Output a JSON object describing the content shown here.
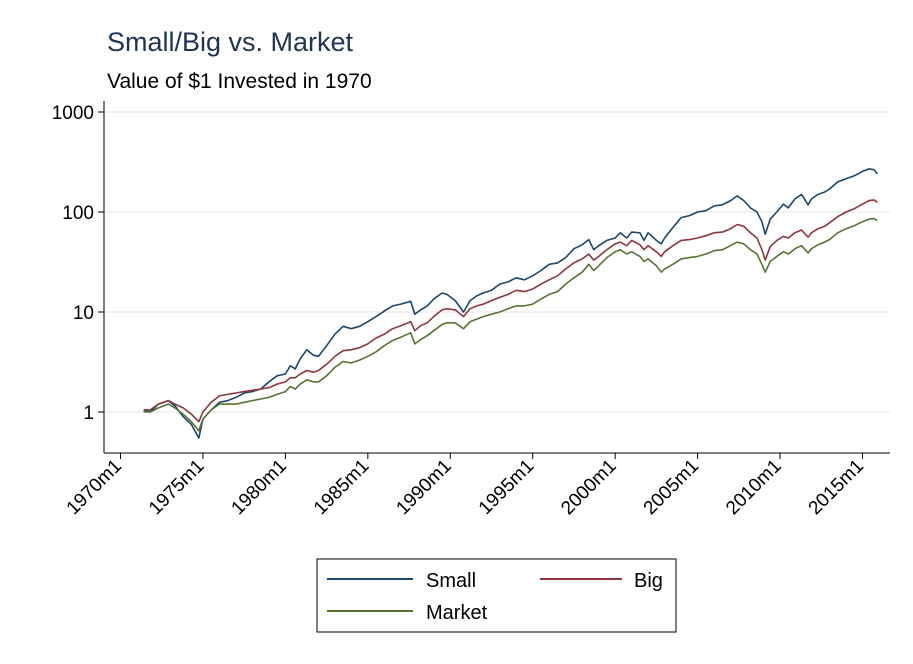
{
  "chart_data": {
    "type": "line",
    "title": "Small/Big vs. Market",
    "subtitle": "Value of $1 Invested in 1970",
    "xlabel": "",
    "ylabel": "",
    "y_scale": "log",
    "ylim": [
      0.4,
      1000
    ],
    "y_ticks": [
      1,
      10,
      100,
      1000
    ],
    "y_tick_labels": [
      "1",
      "10",
      "100",
      "1000"
    ],
    "xlim": [
      1970.0,
      2016.5
    ],
    "x_ticks": [
      1970,
      1975,
      1980,
      1985,
      1990,
      1995,
      2000,
      2005,
      2010,
      2015
    ],
    "x_tick_labels": [
      "1970m1",
      "1975m1",
      "1980m1",
      "1985m1",
      "1990m1",
      "1995m1",
      "2000m1",
      "2005m1",
      "2010m1",
      "2015m1"
    ],
    "grid": true,
    "legend_position": "bottom",
    "series": [
      {
        "name": "Small",
        "color": "#1a476f",
        "x": [
          1971.4,
          1971.8,
          1972.3,
          1972.9,
          1973.3,
          1973.8,
          1974.3,
          1974.75,
          1975.0,
          1975.5,
          1976.0,
          1976.5,
          1977.0,
          1977.5,
          1978.0,
          1978.5,
          1979.0,
          1979.5,
          1980.0,
          1980.3,
          1980.6,
          1980.9,
          1981.3,
          1981.7,
          1982.0,
          1982.5,
          1983.0,
          1983.5,
          1984.0,
          1984.5,
          1985.0,
          1985.5,
          1986.0,
          1986.5,
          1987.0,
          1987.6,
          1987.85,
          1988.2,
          1988.6,
          1989.0,
          1989.5,
          1989.8,
          1990.3,
          1990.8,
          1991.2,
          1991.6,
          1992.0,
          1992.5,
          1993.0,
          1993.5,
          1994.0,
          1994.5,
          1995.0,
          1995.5,
          1996.0,
          1996.5,
          1997.0,
          1997.5,
          1998.0,
          1998.4,
          1998.7,
          1999.0,
          1999.5,
          2000.0,
          2000.3,
          2000.7,
          2001.0,
          2001.5,
          2001.75,
          2002.0,
          2002.5,
          2002.8,
          2003.0,
          2003.5,
          2004.0,
          2004.5,
          2005.0,
          2005.5,
          2006.0,
          2006.5,
          2007.0,
          2007.4,
          2007.8,
          2008.2,
          2008.6,
          2008.9,
          2009.1,
          2009.4,
          2009.8,
          2010.2,
          2010.5,
          2010.9,
          2011.3,
          2011.7,
          2011.9,
          2012.3,
          2012.7,
          2013.0,
          2013.5,
          2014.0,
          2014.5,
          2015.0,
          2015.4,
          2015.7,
          2015.9
        ],
        "values": [
          1.05,
          1.0,
          1.2,
          1.3,
          1.15,
          0.9,
          0.75,
          0.55,
          0.85,
          1.05,
          1.25,
          1.3,
          1.4,
          1.55,
          1.6,
          1.7,
          2.0,
          2.3,
          2.4,
          2.9,
          2.7,
          3.4,
          4.2,
          3.7,
          3.6,
          4.6,
          6.0,
          7.2,
          6.8,
          7.2,
          8.0,
          9.0,
          10.2,
          11.5,
          12.0,
          12.8,
          9.5,
          10.5,
          11.5,
          13.5,
          15.5,
          15.0,
          13.0,
          10.0,
          13.0,
          14.5,
          15.5,
          16.5,
          19.0,
          20.0,
          22.0,
          21.0,
          23.0,
          26.0,
          30.0,
          31.0,
          35.0,
          43.0,
          47.0,
          53.0,
          42.0,
          46.0,
          52.0,
          55.0,
          62.0,
          55.0,
          63.0,
          62.0,
          52.0,
          62.0,
          52.0,
          48.0,
          55.0,
          70.0,
          88.0,
          92.0,
          100.0,
          103.0,
          115.0,
          118.0,
          130.0,
          145.0,
          130.0,
          110.0,
          100.0,
          80.0,
          60.0,
          85.0,
          100.0,
          120.0,
          110.0,
          135.0,
          150.0,
          118.0,
          135.0,
          150.0,
          158.0,
          170.0,
          200.0,
          215.0,
          230.0,
          255.0,
          270.0,
          265.0,
          240.0
        ]
      },
      {
        "name": "Big",
        "color": "#90353b",
        "x": [
          1971.4,
          1971.8,
          1972.3,
          1972.9,
          1973.3,
          1973.8,
          1974.3,
          1974.75,
          1975.0,
          1975.5,
          1976.0,
          1976.5,
          1977.0,
          1977.5,
          1978.0,
          1978.5,
          1979.0,
          1979.5,
          1980.0,
          1980.3,
          1980.6,
          1980.9,
          1981.3,
          1981.7,
          1982.0,
          1982.5,
          1983.0,
          1983.5,
          1984.0,
          1984.5,
          1985.0,
          1985.5,
          1986.0,
          1986.5,
          1987.0,
          1987.6,
          1987.85,
          1988.2,
          1988.6,
          1989.0,
          1989.5,
          1989.8,
          1990.3,
          1990.8,
          1991.2,
          1991.6,
          1992.0,
          1992.5,
          1993.0,
          1993.5,
          1994.0,
          1994.5,
          1995.0,
          1995.5,
          1996.0,
          1996.5,
          1997.0,
          1997.5,
          1998.0,
          1998.4,
          1998.7,
          1999.0,
          1999.5,
          2000.0,
          2000.3,
          2000.7,
          2001.0,
          2001.5,
          2001.75,
          2002.0,
          2002.5,
          2002.8,
          2003.0,
          2003.5,
          2004.0,
          2004.5,
          2005.0,
          2005.5,
          2006.0,
          2006.5,
          2007.0,
          2007.4,
          2007.8,
          2008.2,
          2008.6,
          2008.9,
          2009.1,
          2009.4,
          2009.8,
          2010.2,
          2010.5,
          2010.9,
          2011.3,
          2011.7,
          2011.9,
          2012.3,
          2012.7,
          2013.0,
          2013.5,
          2014.0,
          2014.5,
          2015.0,
          2015.4,
          2015.7,
          2015.9
        ],
        "values": [
          1.05,
          1.05,
          1.2,
          1.3,
          1.2,
          1.1,
          0.95,
          0.8,
          1.0,
          1.25,
          1.45,
          1.5,
          1.55,
          1.6,
          1.65,
          1.7,
          1.75,
          1.9,
          2.0,
          2.2,
          2.2,
          2.4,
          2.6,
          2.5,
          2.6,
          3.0,
          3.6,
          4.1,
          4.2,
          4.4,
          4.8,
          5.5,
          6.0,
          6.8,
          7.3,
          8.0,
          6.5,
          7.3,
          7.8,
          9.0,
          10.5,
          10.8,
          10.5,
          9.0,
          10.8,
          11.5,
          12.0,
          13.0,
          14.0,
          15.0,
          16.5,
          16.0,
          17.0,
          19.0,
          21.0,
          23.0,
          27.0,
          31.0,
          34.0,
          38.0,
          33.0,
          36.0,
          42.0,
          48.0,
          50.0,
          46.0,
          52.0,
          47.0,
          42.0,
          46.0,
          40.0,
          36.0,
          40.0,
          46.0,
          52.0,
          53.0,
          55.0,
          58.0,
          62.0,
          63.0,
          68.0,
          75.0,
          72.0,
          62.0,
          55.0,
          42.0,
          33.0,
          45.0,
          52.0,
          57.0,
          55.0,
          62.0,
          66.0,
          56.0,
          62.0,
          68.0,
          72.0,
          78.0,
          90.0,
          100.0,
          108.0,
          120.0,
          130.0,
          132.0,
          125.0
        ]
      },
      {
        "name": "Market",
        "color": "#55752f",
        "x": [
          1971.4,
          1971.8,
          1972.3,
          1972.9,
          1973.3,
          1973.8,
          1974.3,
          1974.75,
          1975.0,
          1975.5,
          1976.0,
          1976.5,
          1977.0,
          1977.5,
          1978.0,
          1978.5,
          1979.0,
          1979.5,
          1980.0,
          1980.3,
          1980.6,
          1980.9,
          1981.3,
          1981.7,
          1982.0,
          1982.5,
          1983.0,
          1983.5,
          1984.0,
          1984.5,
          1985.0,
          1985.5,
          1986.0,
          1986.5,
          1987.0,
          1987.6,
          1987.85,
          1988.2,
          1988.6,
          1989.0,
          1989.5,
          1989.8,
          1990.3,
          1990.8,
          1991.2,
          1991.6,
          1992.0,
          1992.5,
          1993.0,
          1993.5,
          1994.0,
          1994.5,
          1995.0,
          1995.5,
          1996.0,
          1996.5,
          1997.0,
          1997.5,
          1998.0,
          1998.4,
          1998.7,
          1999.0,
          1999.5,
          2000.0,
          2000.3,
          2000.7,
          2001.0,
          2001.5,
          2001.75,
          2002.0,
          2002.5,
          2002.8,
          2003.0,
          2003.5,
          2004.0,
          2004.5,
          2005.0,
          2005.5,
          2006.0,
          2006.5,
          2007.0,
          2007.4,
          2007.8,
          2008.2,
          2008.6,
          2008.9,
          2009.1,
          2009.4,
          2009.8,
          2010.2,
          2010.5,
          2010.9,
          2011.3,
          2011.7,
          2011.9,
          2012.3,
          2012.7,
          2013.0,
          2013.5,
          2014.0,
          2014.5,
          2015.0,
          2015.4,
          2015.7,
          2015.9
        ],
        "values": [
          1.0,
          1.0,
          1.1,
          1.2,
          1.1,
          0.95,
          0.8,
          0.65,
          0.85,
          1.05,
          1.2,
          1.2,
          1.2,
          1.25,
          1.3,
          1.35,
          1.4,
          1.5,
          1.6,
          1.8,
          1.7,
          1.9,
          2.1,
          2.0,
          2.0,
          2.3,
          2.8,
          3.2,
          3.1,
          3.3,
          3.6,
          4.0,
          4.6,
          5.2,
          5.6,
          6.2,
          4.8,
          5.3,
          5.8,
          6.5,
          7.5,
          7.8,
          7.8,
          6.8,
          8.0,
          8.5,
          9.0,
          9.5,
          10.0,
          10.8,
          11.5,
          11.5,
          12.0,
          13.5,
          15.0,
          16.0,
          19.0,
          22.0,
          25.0,
          30.0,
          26.0,
          29.0,
          35.0,
          40.0,
          42.0,
          38.0,
          40.0,
          36.0,
          32.0,
          34.0,
          29.0,
          25.0,
          27.0,
          30.0,
          34.0,
          35.0,
          36.0,
          38.0,
          41.0,
          42.0,
          46.0,
          50.0,
          48.0,
          42.0,
          38.0,
          30.0,
          25.0,
          32.0,
          36.0,
          40.0,
          38.0,
          43.0,
          46.0,
          39.0,
          43.0,
          47.0,
          50.0,
          53.0,
          62.0,
          68.0,
          73.0,
          80.0,
          85.0,
          86.0,
          82.0
        ]
      }
    ]
  }
}
